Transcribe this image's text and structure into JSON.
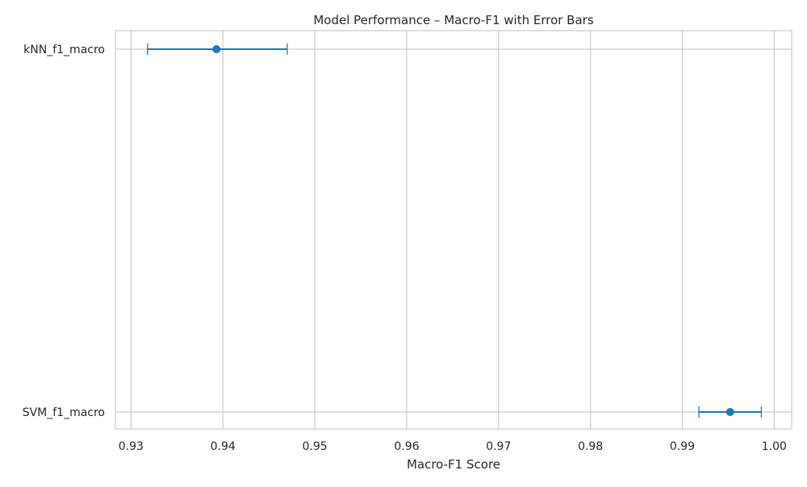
{
  "chart_data": {
    "type": "errorbar",
    "title": "Model Performance – Macro-F1 with Error Bars",
    "xlabel": "Macro-F1 Score",
    "ylabel": "",
    "xlim": [
      0.9283,
      1.0019
    ],
    "x_ticks": [
      "0.93",
      "0.94",
      "0.95",
      "0.96",
      "0.97",
      "0.98",
      "0.99",
      "1.00"
    ],
    "x_tick_values": [
      0.93,
      0.94,
      0.95,
      0.96,
      0.97,
      0.98,
      0.99,
      1.0
    ],
    "grid": true,
    "orientation": "horizontal",
    "color": "#1f77b4",
    "categories": [
      "kNN_f1_macro",
      "SVM_f1_macro"
    ],
    "points": [
      {
        "label": "kNN_f1_macro",
        "value": 0.9393,
        "error_low": 0.9318,
        "error_high": 0.947
      },
      {
        "label": "SVM_f1_macro",
        "value": 0.9952,
        "error_low": 0.9918,
        "error_high": 0.9986
      }
    ]
  }
}
